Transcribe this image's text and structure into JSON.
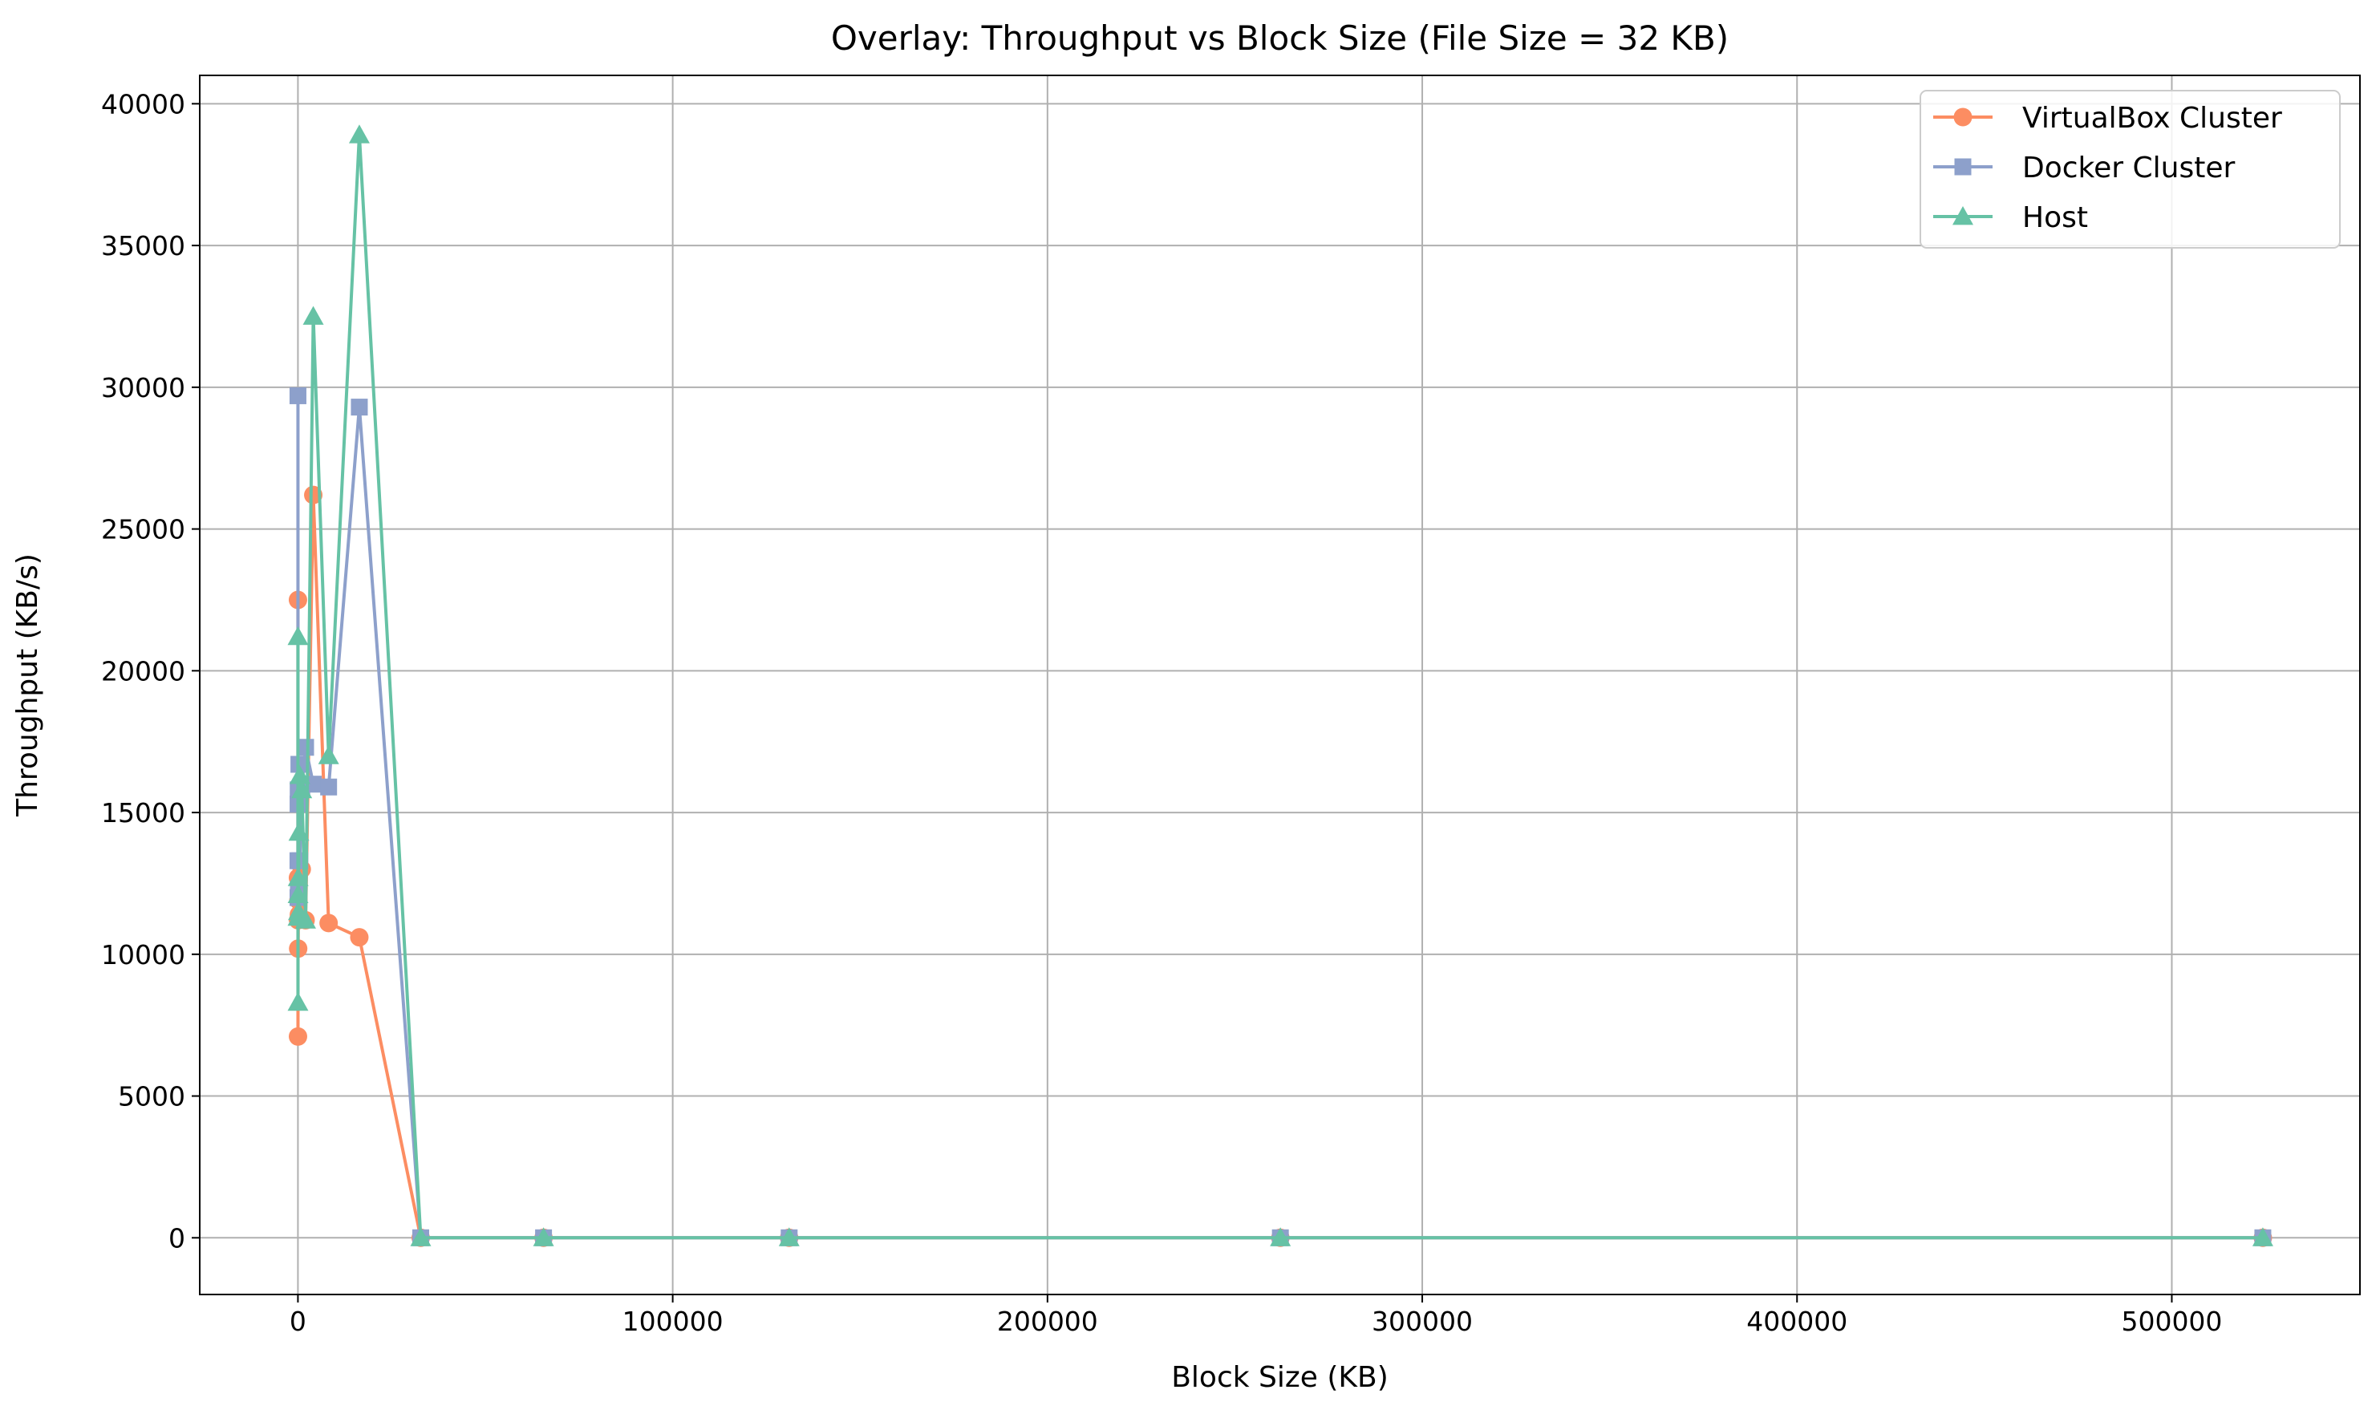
{
  "chart_data": {
    "type": "line",
    "title": "Overlay: Throughput vs Block Size (File Size = 32 KB)",
    "xlabel": "Block Size (KB)",
    "ylabel": "Throughput (KB/s)",
    "xlim": [
      -26200,
      550200
    ],
    "ylim": [
      -2000,
      41000
    ],
    "xticks": [
      0,
      100000,
      200000,
      300000,
      400000,
      500000
    ],
    "xtick_labels": [
      "0",
      "100000",
      "200000",
      "300000",
      "400000",
      "500000"
    ],
    "yticks": [
      0,
      5000,
      10000,
      15000,
      20000,
      25000,
      30000,
      35000,
      40000
    ],
    "ytick_labels": [
      "0",
      "5000",
      "10000",
      "15000",
      "20000",
      "25000",
      "30000",
      "35000",
      "40000"
    ],
    "grid": true,
    "legend_position": "upper right",
    "x": [
      4,
      8,
      16,
      32,
      64,
      128,
      256,
      512,
      1024,
      2048,
      4096,
      8192,
      16384,
      32768,
      65536,
      131072,
      262144,
      524288
    ],
    "series": [
      {
        "name": "VirtualBox Cluster",
        "color": "#fc8d62",
        "marker": "circle",
        "values": [
          12700,
          22500,
          7100,
          11200,
          10200,
          11900,
          11400,
          11300,
          13000,
          11200,
          26200,
          11100,
          10600,
          0,
          0,
          0,
          0,
          0
        ]
      },
      {
        "name": "Docker Cluster",
        "color": "#8da0cb",
        "marker": "square",
        "values": [
          13300,
          29700,
          12000,
          15300,
          15800,
          12300,
          16700,
          13300,
          15900,
          17300,
          16000,
          15900,
          29300,
          0,
          0,
          0,
          0,
          0
        ]
      },
      {
        "name": "Host",
        "color": "#66c2a5",
        "marker": "triangle",
        "values": [
          11300,
          21200,
          8300,
          12100,
          12700,
          11500,
          14300,
          16300,
          15800,
          11200,
          32500,
          17000,
          38900,
          0,
          0,
          0,
          0,
          0
        ]
      }
    ]
  }
}
